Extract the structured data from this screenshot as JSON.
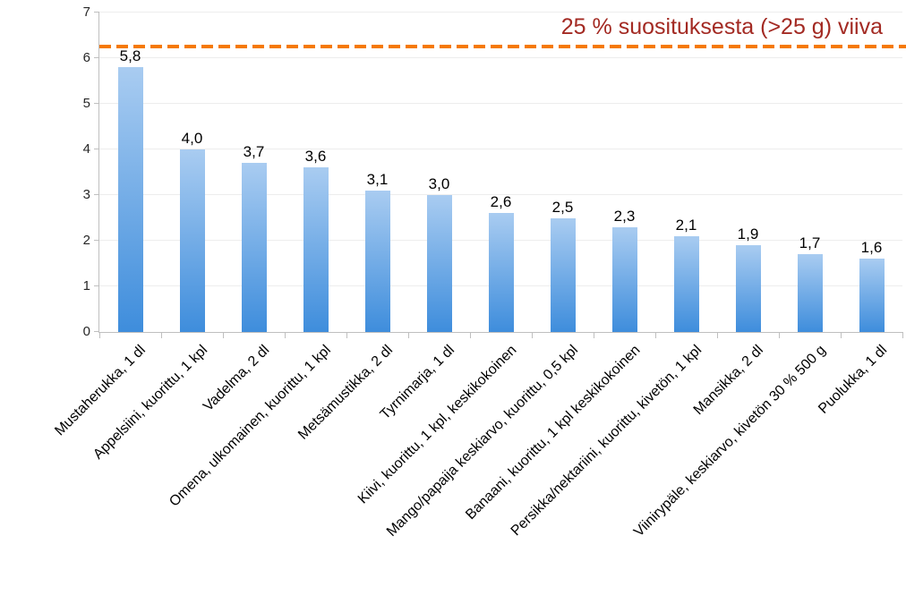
{
  "chart_data": {
    "type": "bar",
    "title": "",
    "xlabel": "",
    "ylabel": "",
    "categories": [
      "Mustaherukka, 1 dl",
      "Appelsiini, kuorittu, 1 kpl",
      "Vadelma, 2 dl",
      "Omena, ulkomainen, kuorittu, 1 kpl",
      "Metsämustikka, 2 dl",
      "Tyrnimarja, 1 dl",
      "Kiivi, kuorittu, 1 kpl, keskikokoinen",
      "Mango/papaija keskiarvo, kuorittu, 0,5 kpl",
      "Banaani, kuorittu, 1 kpl keskikokoinen",
      "Persikka/nektariini, kuorittu, kivetön, 1 kpl",
      "Mansikka, 2 dl",
      "Viinirypäle, keskiarvo, kivetön 30 % 500 g",
      "Puolukka, 1 dl"
    ],
    "values": [
      5.8,
      4.0,
      3.7,
      3.6,
      3.1,
      3.0,
      2.6,
      2.5,
      2.3,
      2.1,
      1.9,
      1.7,
      1.6
    ],
    "value_labels": [
      "5,8",
      "4,0",
      "3,7",
      "3,6",
      "3,1",
      "3,0",
      "2,6",
      "2,5",
      "2,3",
      "2,1",
      "1,9",
      "1,7",
      "1,6"
    ],
    "ylim": [
      0,
      7
    ],
    "yticks": [
      "0",
      "1",
      "2",
      "3",
      "4",
      "5",
      "6",
      "7"
    ],
    "grid": true,
    "legend": "none",
    "bar_colors": {
      "top": "#A9CCF1",
      "bottom": "#3E8DDC"
    },
    "reference_line": {
      "value": 6.25,
      "style": "dashed",
      "color": "#F57900",
      "label": "25 % suosituksesta (>25 g) viiva",
      "label_color": "#A32A23",
      "label_position": "top-right"
    }
  }
}
